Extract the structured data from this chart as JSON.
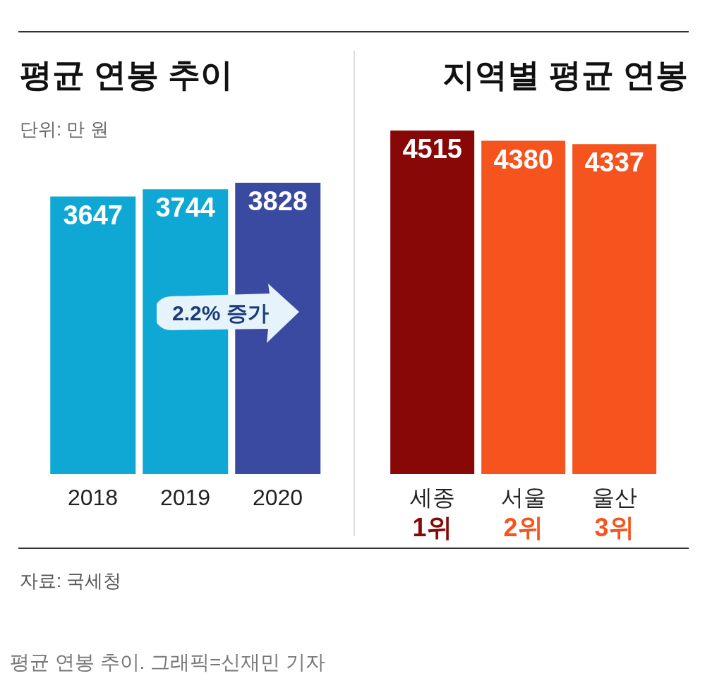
{
  "chart_data": [
    {
      "type": "bar",
      "title": "평균 연봉 추이",
      "subtitle": "단위: 만 원",
      "categories": [
        "2018",
        "2019",
        "2020"
      ],
      "values": [
        3647,
        3744,
        3828
      ],
      "colors": [
        "#0fa8d4",
        "#0fa8d4",
        "#3a4aa0"
      ],
      "data_labels": true,
      "annotations": [
        "2.2% 증가",
        "자료: 국세청",
        "평균 연봉 추이. 그래픽=신재민 기자"
      ]
    },
    {
      "type": "bar",
      "title": "지역별 평균 연봉",
      "categories": [
        "세종",
        "서울",
        "울산"
      ],
      "values": [
        4515,
        4380,
        4337
      ],
      "colors": [
        "#880808",
        "#f5541e",
        "#f5541e"
      ],
      "data_labels": true,
      "annotations": [
        "1위",
        "2위",
        "3위"
      ]
    }
  ]
}
